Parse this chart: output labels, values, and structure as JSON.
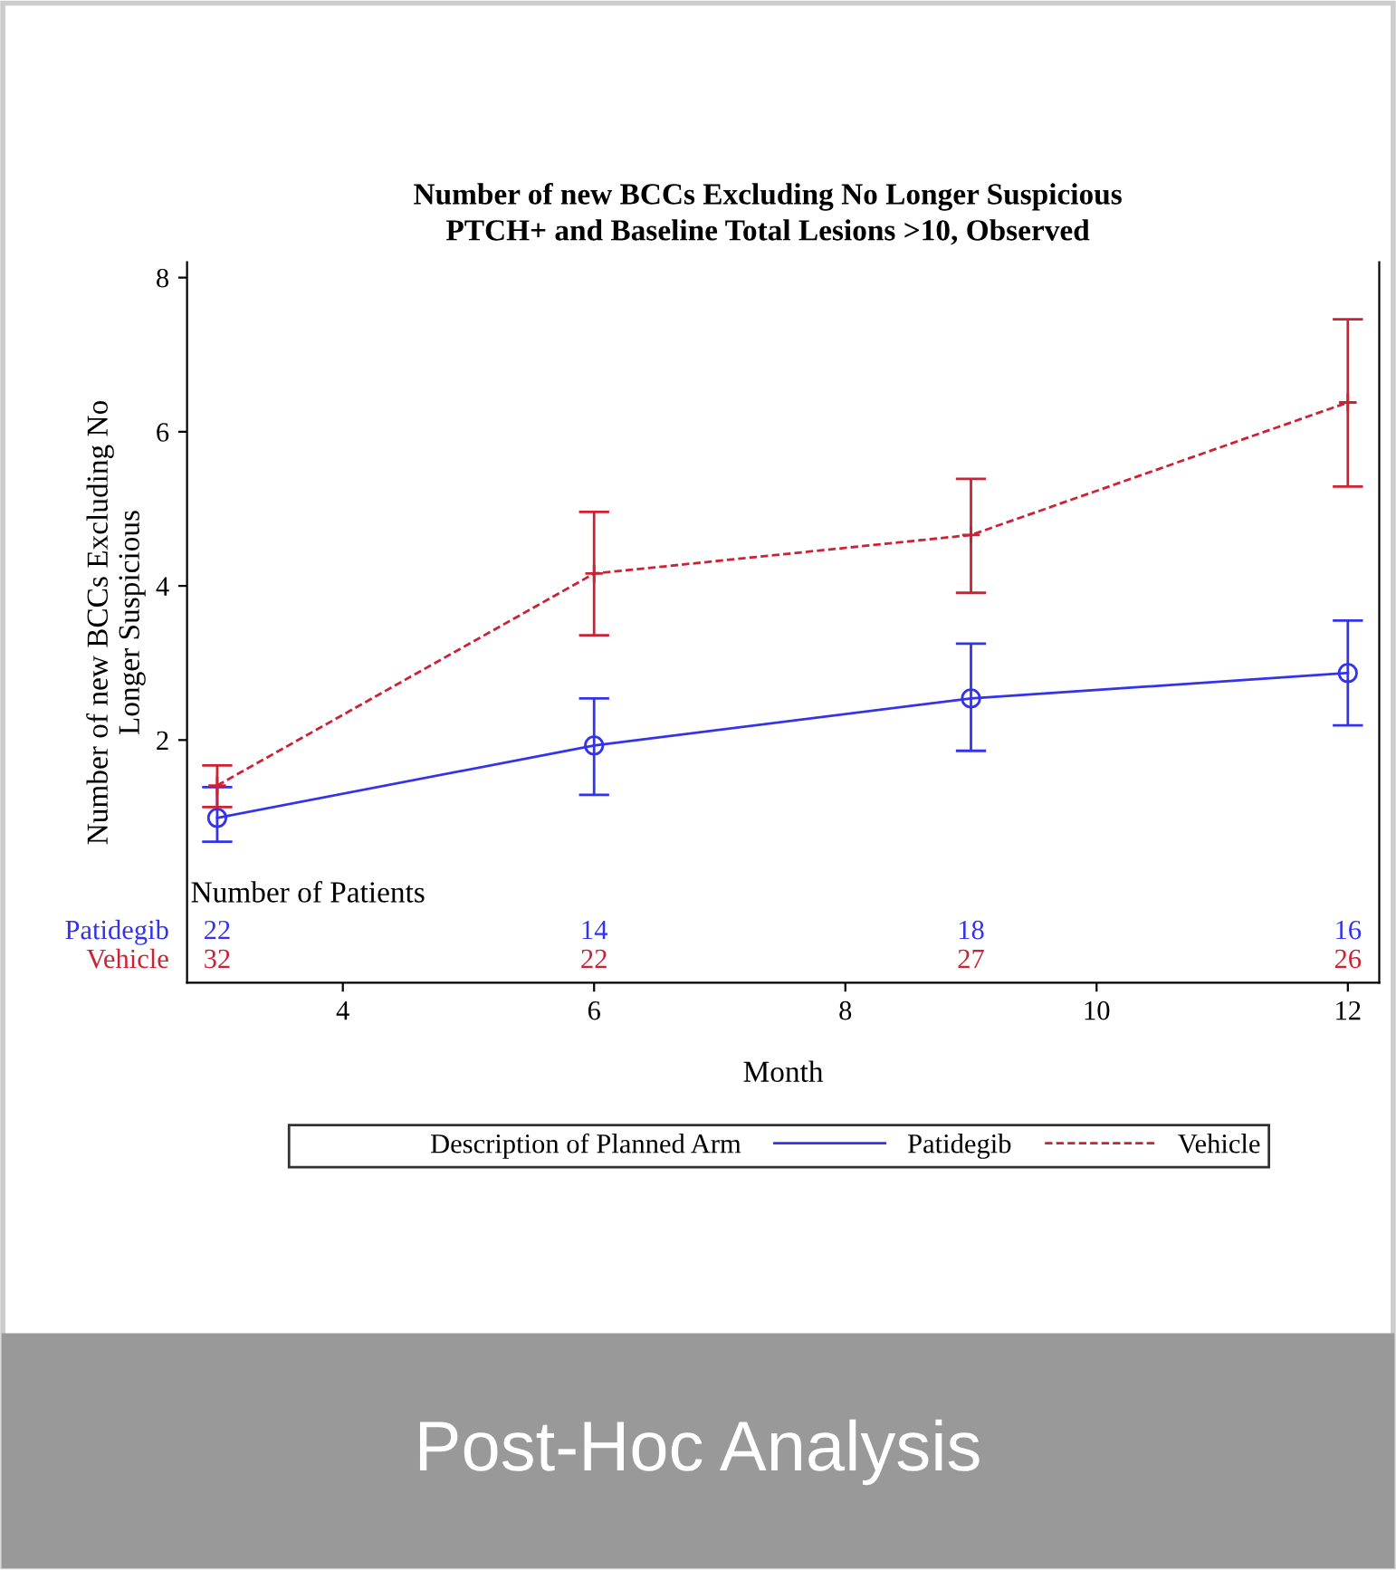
{
  "chart_data": {
    "type": "line",
    "title": "Number of new BCCs Excluding No Longer Suspicious",
    "subtitle": "PTCH+ and Baseline Total Lesions >10, Observed",
    "xlabel": "Month",
    "ylabel": "Number of new BCCs Excluding No\nLonger Suspicious",
    "legend_title": "Description of Planned Arm",
    "legend": "bottom",
    "x": [
      3,
      6,
      9,
      12
    ],
    "series": [
      {
        "name": "Patidegib",
        "color": "#3333ee",
        "marker": "circle",
        "line_style": "solid",
        "values": [
          0.99,
          1.93,
          2.54,
          2.87
        ],
        "errors": [
          [
            0.68,
            1.39
          ],
          [
            1.29,
            2.54
          ],
          [
            1.86,
            3.25
          ],
          [
            2.19,
            3.55
          ]
        ]
      },
      {
        "name": "Vehicle",
        "color": "#cc2233",
        "marker": "cross",
        "line_style": "dashed",
        "values": [
          1.41,
          4.16,
          4.66,
          6.38
        ],
        "errors": [
          [
            1.13,
            1.67
          ],
          [
            3.36,
            4.96
          ],
          [
            3.91,
            5.39
          ],
          [
            5.29,
            7.46
          ]
        ]
      }
    ],
    "xlim": [
      2.76,
      12.25
    ],
    "ylim": [
      -1.15,
      8.2
    ],
    "xticks": [
      4,
      6,
      8,
      10,
      12
    ],
    "yticks": [
      2,
      4,
      6,
      8
    ],
    "grid": false,
    "annotations": [
      "Number of Patients",
      "Patidegib",
      "22",
      "14",
      "18",
      "16",
      "Vehicle",
      "32",
      "22",
      "27",
      "26",
      "Post-Hoc Analysis"
    ]
  }
}
